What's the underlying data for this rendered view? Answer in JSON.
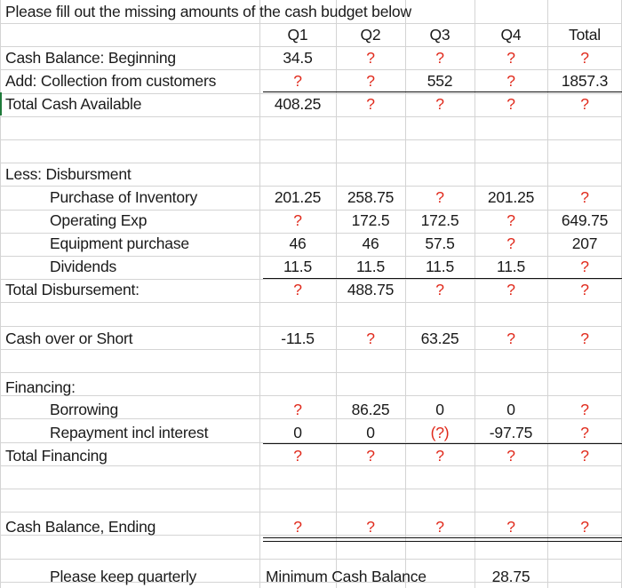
{
  "title": "Please fill out the missing amounts of the cash budget below",
  "headers": [
    "Q1",
    "Q2",
    "Q3",
    "Q4",
    "Total"
  ],
  "rows": [
    {
      "label": "Cash Balance:  Beginning",
      "values": [
        "34.5",
        "?",
        "?",
        "?",
        "?"
      ]
    },
    {
      "label": "Add: Collection from customers",
      "values": [
        "?",
        "?",
        "552",
        "?",
        "1857.3"
      ]
    },
    {
      "label": "Total Cash Available",
      "values": [
        "408.25",
        "?",
        "?",
        "?",
        "?"
      ]
    },
    {
      "label": "Less: Disbursment",
      "values": [
        "",
        "",
        "",
        "",
        ""
      ]
    },
    {
      "label": "Purchase of Inventory",
      "values": [
        "201.25",
        "258.75",
        "?",
        "201.25",
        "?"
      ]
    },
    {
      "label": "Operating Exp",
      "values": [
        "?",
        "172.5",
        "172.5",
        "?",
        "649.75"
      ]
    },
    {
      "label": "Equipment purchase",
      "values": [
        "46",
        "46",
        "57.5",
        "?",
        "207"
      ]
    },
    {
      "label": "Dividends",
      "values": [
        "11.5",
        "11.5",
        "11.5",
        "11.5",
        "?"
      ]
    },
    {
      "label": "Total Disbursement:",
      "values": [
        "?",
        "488.75",
        "?",
        "?",
        "?"
      ]
    },
    {
      "label": "Cash over or Short",
      "values": [
        "-11.5",
        "?",
        "63.25",
        "?",
        "?"
      ]
    },
    {
      "label": "Financing:",
      "values": [
        "",
        "",
        "",
        "",
        ""
      ]
    },
    {
      "label": "Borrowing",
      "values": [
        "?",
        "86.25",
        "0",
        "0",
        "?"
      ]
    },
    {
      "label": "Repayment incl interest",
      "values": [
        "0",
        "0",
        "(?)",
        "-97.75",
        "?"
      ]
    },
    {
      "label": "Total Financing",
      "values": [
        "?",
        "?",
        "?",
        "?",
        "?"
      ]
    },
    {
      "label": "Cash Balance, Ending",
      "values": [
        "?",
        "?",
        "?",
        "?",
        "?"
      ]
    }
  ],
  "footer": {
    "label": "Please keep quarterly",
    "min_label": "Minimum Cash Balance",
    "min_value": "28.75"
  },
  "colors": {
    "unknown": "#e0291b",
    "text": "#1a1a1a",
    "grid": "#d4d4d4",
    "selection": "#1f7a3a"
  }
}
